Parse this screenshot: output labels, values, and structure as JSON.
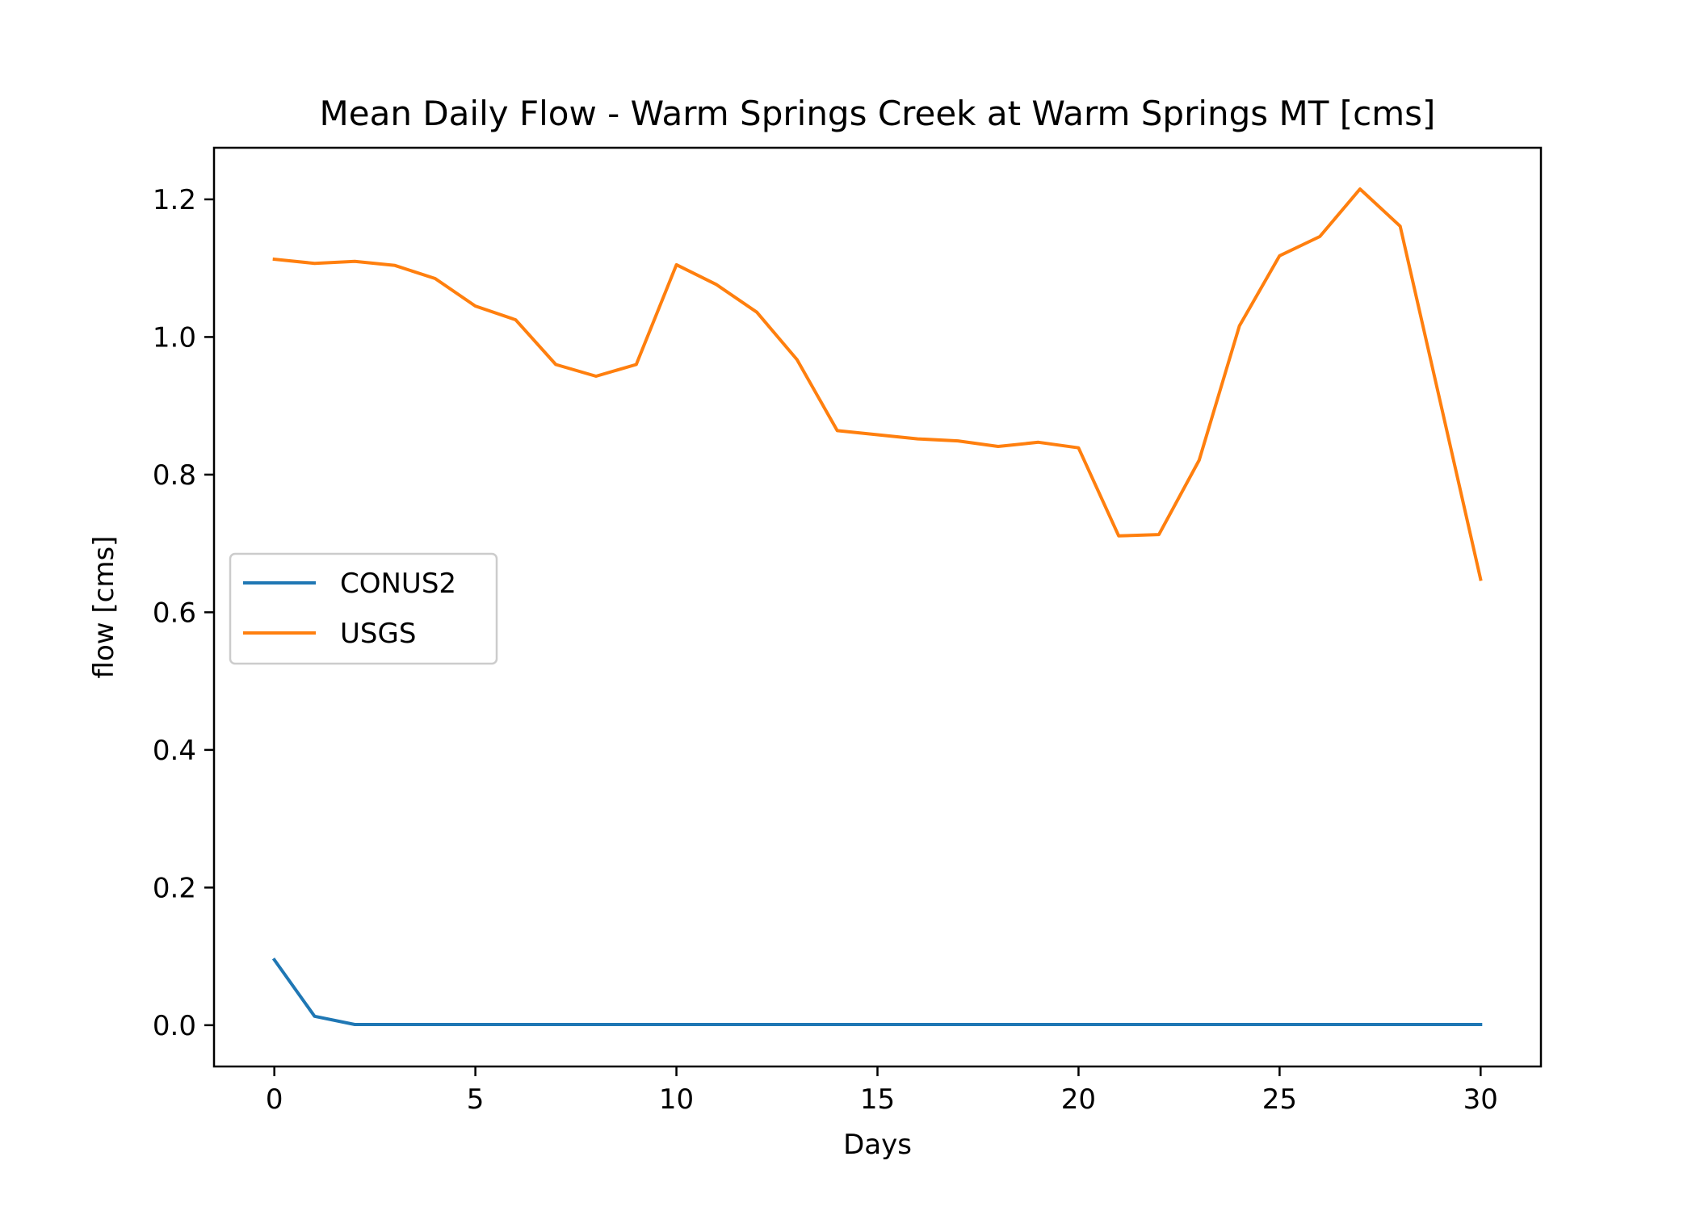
{
  "chart_data": {
    "type": "line",
    "title": "Mean Daily Flow - Warm Springs Creek at Warm Springs MT [cms]",
    "xlabel": "Days",
    "ylabel": "flow [cms]",
    "xlim": [
      -1.5,
      31.5
    ],
    "ylim": [
      -0.06,
      1.275
    ],
    "xticks": [
      0,
      5,
      10,
      15,
      20,
      25,
      30
    ],
    "xtick_labels": [
      "0",
      "5",
      "10",
      "15",
      "20",
      "25",
      "30"
    ],
    "yticks": [
      0.0,
      0.2,
      0.4,
      0.6,
      0.8,
      1.0,
      1.2
    ],
    "ytick_labels": [
      "0.0",
      "0.2",
      "0.4",
      "0.6",
      "0.8",
      "1.0",
      "1.2"
    ],
    "grid": false,
    "legend_position": "center-left",
    "x": [
      0,
      1,
      2,
      3,
      4,
      5,
      6,
      7,
      8,
      9,
      10,
      11,
      12,
      13,
      14,
      15,
      16,
      17,
      18,
      19,
      20,
      21,
      22,
      23,
      24,
      25,
      26,
      27,
      28,
      29,
      30
    ],
    "series": [
      {
        "name": "CONUS2",
        "color": "#1f77b4",
        "values": [
          0.095,
          0.013,
          0.001,
          0.001,
          0.001,
          0.001,
          0.001,
          0.001,
          0.001,
          0.001,
          0.001,
          0.001,
          0.001,
          0.001,
          0.001,
          0.001,
          0.001,
          0.001,
          0.001,
          0.001,
          0.001,
          0.001,
          0.001,
          0.001,
          0.001,
          0.001,
          0.001,
          0.001,
          0.001,
          0.001,
          0.001
        ]
      },
      {
        "name": "USGS",
        "color": "#ff7f0e",
        "values": [
          1.113,
          1.107,
          1.11,
          1.104,
          1.085,
          1.045,
          1.025,
          0.96,
          0.943,
          0.96,
          1.105,
          1.076,
          1.036,
          0.967,
          0.864,
          0.858,
          0.852,
          0.849,
          0.841,
          0.847,
          0.839,
          0.711,
          0.713,
          0.821,
          1.016,
          1.118,
          1.146,
          1.215,
          1.161,
          0.905,
          0.648
        ]
      }
    ]
  }
}
